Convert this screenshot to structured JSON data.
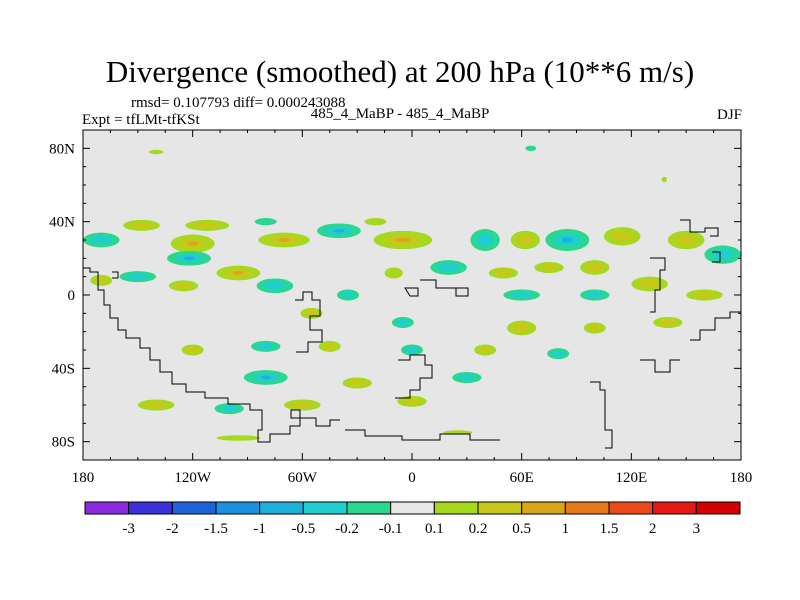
{
  "title": "Divergence (smoothed) at 200 hPa (10**6 m/s)",
  "stats_line": "rmsd= 0.107793 diff= 0.000243088",
  "expt_label": "Expt = tfLMt-tfKSt",
  "center_label": "485_4_MaBP - 485_4_MaBP",
  "season_label": "DJF",
  "chart_data": {
    "type": "heatmap",
    "projection": "cylindrical-equidistant",
    "x_range": [
      -180,
      180
    ],
    "y_range": [
      -90,
      90
    ],
    "x_ticks": [
      {
        "value": -180,
        "label": "180"
      },
      {
        "value": -120,
        "label": "120W"
      },
      {
        "value": -60,
        "label": "60W"
      },
      {
        "value": 0,
        "label": "0"
      },
      {
        "value": 60,
        "label": "60E"
      },
      {
        "value": 120,
        "label": "120E"
      },
      {
        "value": 180,
        "label": "180"
      }
    ],
    "y_ticks": [
      {
        "value": 80,
        "label": "80N"
      },
      {
        "value": 40,
        "label": "40N"
      },
      {
        "value": 0,
        "label": "0"
      },
      {
        "value": -40,
        "label": "40S"
      },
      {
        "value": -80,
        "label": "80S"
      }
    ],
    "colorbar": {
      "levels": [
        "-3",
        "-2",
        "-1.5",
        "-1",
        "-0.5",
        "-0.2",
        "-0.1",
        "0.1",
        "0.2",
        "0.5",
        "1",
        "1.5",
        "2",
        "3"
      ],
      "colors": [
        "#8a2be2",
        "#3a32d6",
        "#1f63d8",
        "#1e90e0",
        "#20b0dc",
        "#1fcfd0",
        "#2ad790",
        "#e8e8e8",
        "#a6d81e",
        "#c9c81a",
        "#d9a61c",
        "#e47a1a",
        "#ea4a1a",
        "#e61a14",
        "#d40000"
      ]
    },
    "regions": [
      {
        "lon": -140,
        "lat": 78,
        "rx": 4,
        "ry": 1.2,
        "sign": 1
      },
      {
        "lon": 65,
        "lat": 80,
        "rx": 3,
        "ry": 1.5,
        "sign": -1
      },
      {
        "lon": 138,
        "lat": 63,
        "rx": 1.5,
        "ry": 1.5,
        "sign": 1
      },
      {
        "lon": -170,
        "lat": 30,
        "rx": 10,
        "ry": 4,
        "sign": -1
      },
      {
        "lon": -148,
        "lat": 38,
        "rx": 10,
        "ry": 3,
        "sign": 1
      },
      {
        "lon": -112,
        "lat": 38,
        "rx": 12,
        "ry": 3,
        "sign": 1
      },
      {
        "lon": -120,
        "lat": 28,
        "rx": 12,
        "ry": 5,
        "sign": 1
      },
      {
        "lon": -122,
        "lat": 20,
        "rx": 12,
        "ry": 4,
        "sign": -1
      },
      {
        "lon": -70,
        "lat": 30,
        "rx": 14,
        "ry": 4,
        "sign": 1
      },
      {
        "lon": -80,
        "lat": 40,
        "rx": 6,
        "ry": 2,
        "sign": -1
      },
      {
        "lon": -40,
        "lat": 35,
        "rx": 12,
        "ry": 4,
        "sign": -1
      },
      {
        "lon": -20,
        "lat": 40,
        "rx": 6,
        "ry": 2,
        "sign": 1
      },
      {
        "lon": -5,
        "lat": 30,
        "rx": 16,
        "ry": 5,
        "sign": 1
      },
      {
        "lon": 40,
        "lat": 30,
        "rx": 8,
        "ry": 6,
        "sign": -1
      },
      {
        "lon": 62,
        "lat": 30,
        "rx": 8,
        "ry": 5,
        "sign": 1
      },
      {
        "lon": 85,
        "lat": 30,
        "rx": 12,
        "ry": 6,
        "sign": -1
      },
      {
        "lon": 115,
        "lat": 32,
        "rx": 10,
        "ry": 5,
        "sign": 1
      },
      {
        "lon": 150,
        "lat": 30,
        "rx": 10,
        "ry": 5,
        "sign": 1
      },
      {
        "lon": 170,
        "lat": 22,
        "rx": 10,
        "ry": 5,
        "sign": -1
      },
      {
        "lon": -170,
        "lat": 8,
        "rx": 6,
        "ry": 3,
        "sign": 1
      },
      {
        "lon": -150,
        "lat": 10,
        "rx": 10,
        "ry": 3,
        "sign": -1
      },
      {
        "lon": -125,
        "lat": 5,
        "rx": 8,
        "ry": 3,
        "sign": 1
      },
      {
        "lon": -95,
        "lat": 12,
        "rx": 12,
        "ry": 4,
        "sign": 1
      },
      {
        "lon": -75,
        "lat": 5,
        "rx": 10,
        "ry": 4,
        "sign": -1
      },
      {
        "lon": -55,
        "lat": -10,
        "rx": 6,
        "ry": 3,
        "sign": 1
      },
      {
        "lon": -35,
        "lat": 0,
        "rx": 6,
        "ry": 3,
        "sign": -1
      },
      {
        "lon": -10,
        "lat": 12,
        "rx": 5,
        "ry": 3,
        "sign": 1
      },
      {
        "lon": 20,
        "lat": 15,
        "rx": 10,
        "ry": 4,
        "sign": -1
      },
      {
        "lon": 50,
        "lat": 12,
        "rx": 8,
        "ry": 3,
        "sign": 1
      },
      {
        "lon": 75,
        "lat": 15,
        "rx": 8,
        "ry": 3,
        "sign": 1
      },
      {
        "lon": 100,
        "lat": 15,
        "rx": 8,
        "ry": 4,
        "sign": 1
      },
      {
        "lon": 130,
        "lat": 6,
        "rx": 10,
        "ry": 4,
        "sign": 1
      },
      {
        "lon": 160,
        "lat": 0,
        "rx": 10,
        "ry": 3,
        "sign": 1
      },
      {
        "lon": 100,
        "lat": 0,
        "rx": 8,
        "ry": 3,
        "sign": -1
      },
      {
        "lon": 60,
        "lat": 0,
        "rx": 10,
        "ry": 3,
        "sign": -1
      },
      {
        "lon": -5,
        "lat": -15,
        "rx": 6,
        "ry": 3,
        "sign": -1
      },
      {
        "lon": 60,
        "lat": -18,
        "rx": 8,
        "ry": 4,
        "sign": 1
      },
      {
        "lon": 100,
        "lat": -18,
        "rx": 6,
        "ry": 3,
        "sign": 1
      },
      {
        "lon": 140,
        "lat": -15,
        "rx": 8,
        "ry": 3,
        "sign": 1
      },
      {
        "lon": -120,
        "lat": -30,
        "rx": 6,
        "ry": 3,
        "sign": 1
      },
      {
        "lon": -80,
        "lat": -28,
        "rx": 8,
        "ry": 3,
        "sign": -1
      },
      {
        "lon": -45,
        "lat": -28,
        "rx": 6,
        "ry": 3,
        "sign": 1
      },
      {
        "lon": 0,
        "lat": -30,
        "rx": 6,
        "ry": 3,
        "sign": -1
      },
      {
        "lon": 40,
        "lat": -30,
        "rx": 6,
        "ry": 3,
        "sign": 1
      },
      {
        "lon": 80,
        "lat": -32,
        "rx": 6,
        "ry": 3,
        "sign": -1
      },
      {
        "lon": -80,
        "lat": -45,
        "rx": 12,
        "ry": 4,
        "sign": -1
      },
      {
        "lon": -30,
        "lat": -48,
        "rx": 8,
        "ry": 3,
        "sign": 1
      },
      {
        "lon": 30,
        "lat": -45,
        "rx": 8,
        "ry": 3,
        "sign": -1
      },
      {
        "lon": -140,
        "lat": -60,
        "rx": 10,
        "ry": 3,
        "sign": 1
      },
      {
        "lon": -100,
        "lat": -62,
        "rx": 8,
        "ry": 3,
        "sign": -1
      },
      {
        "lon": -60,
        "lat": -60,
        "rx": 10,
        "ry": 3,
        "sign": 1
      },
      {
        "lon": 0,
        "lat": -58,
        "rx": 8,
        "ry": 3,
        "sign": 1
      },
      {
        "lon": -95,
        "lat": -78,
        "rx": 12,
        "ry": 1.5,
        "sign": 1
      },
      {
        "lon": 25,
        "lat": -75,
        "rx": 8,
        "ry": 1.2,
        "sign": 1
      }
    ]
  }
}
